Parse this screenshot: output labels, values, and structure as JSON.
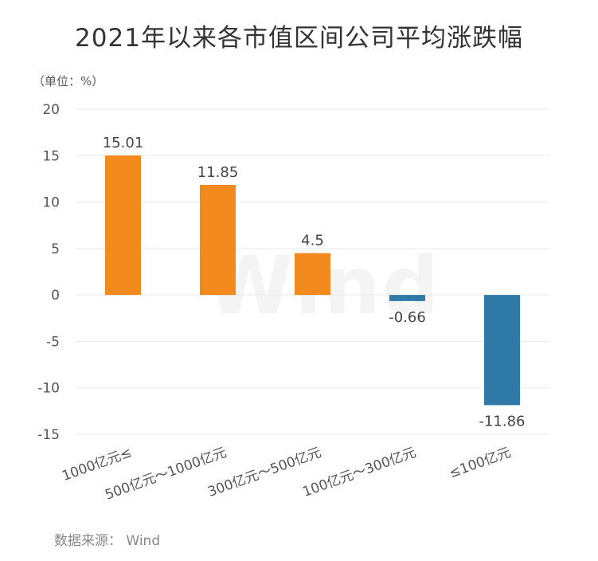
{
  "title": "2021年以来各市值区间公司平均涨跌幅",
  "unit_label": "（单位：%）",
  "source": "数据来源：  Wind",
  "watermark": "Wind",
  "colors": {
    "positive": "#F28A1E",
    "negative": "#2E79A6",
    "grid": "#e9e9e9"
  },
  "chart_data": {
    "type": "bar",
    "title": "2021年以来各市值区间公司平均涨跌幅",
    "ylabel": "（单位：%）",
    "categories": [
      "1000亿元≤",
      "500亿元～1000亿元",
      "300亿元～500亿元",
      "100亿元～300亿元",
      "≤100亿元"
    ],
    "values": [
      15.01,
      11.85,
      4.5,
      -0.66,
      -11.86
    ],
    "value_labels": [
      "15.01",
      "11.85",
      "4.5",
      "-0.66",
      "-11.86"
    ],
    "ylim": [
      -15,
      20
    ],
    "yticks": [
      20,
      15,
      10,
      5,
      0,
      -5,
      -10,
      -15
    ],
    "grid": true,
    "legend": "none"
  }
}
